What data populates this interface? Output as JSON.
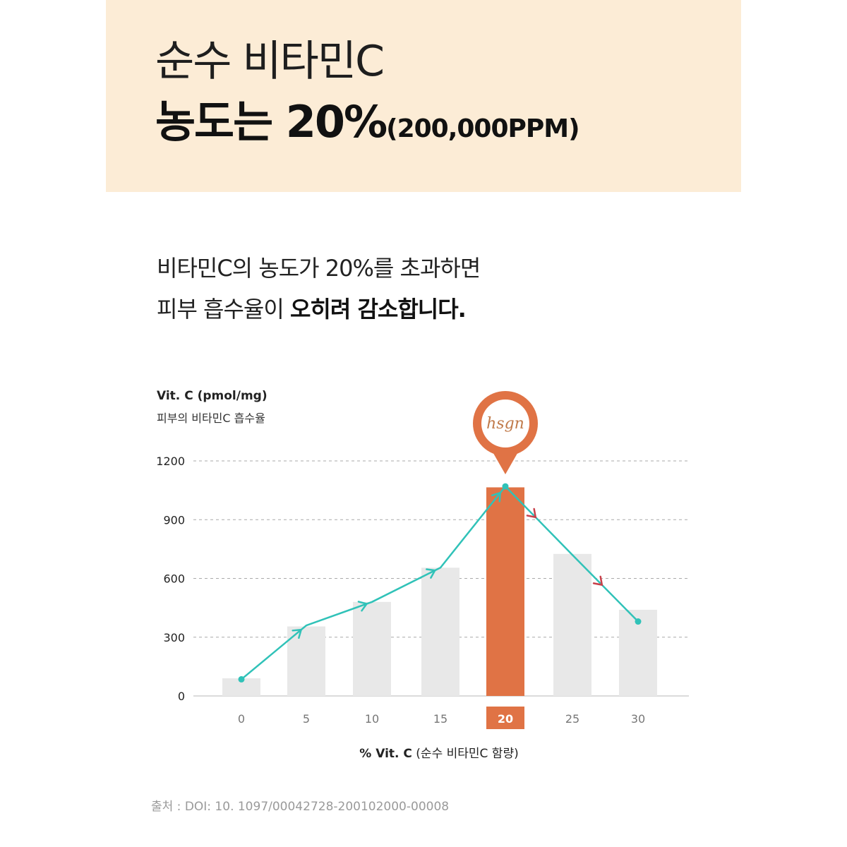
{
  "header": {
    "title_line1": "순수 비타민C",
    "title_line2_bold": "농도는 20%",
    "title_line2_small": "(200,000PPM)"
  },
  "description": {
    "line1": "비타민C의 농도가 20%를 초과하면",
    "line2_regular": "피부 흡수율이 ",
    "line2_bold": "오히려 감소합니다."
  },
  "chart_data": {
    "type": "bar",
    "ylabel": "Vit. C (pmol/mg)",
    "ylabel_sub": "피부의 비타민C 흡수율",
    "xlabel_bold": "% Vit. C",
    "xlabel_rest": " (순수 비타민C 함량)",
    "categories": [
      "0",
      "5",
      "10",
      "15",
      "20",
      "25",
      "30"
    ],
    "values": [
      90,
      355,
      480,
      655,
      1065,
      725,
      440
    ],
    "line_values": [
      85,
      360,
      480,
      655,
      1070,
      720,
      380
    ],
    "highlight_index": 4,
    "yticks": [
      0,
      300,
      600,
      900,
      1200
    ],
    "ylim": [
      0,
      1200
    ],
    "grid": "dashed",
    "marker_logo": "hsgn",
    "colors": {
      "bar": "#e8e8e8",
      "highlight_bar": "#e07345",
      "line": "#30c2b8",
      "rising_arrow": "#30c2b8",
      "falling_arrow": "#c8404a",
      "grid": "#aaaaaa"
    }
  },
  "source": "출처 : DOI: 10. 1097/00042728-200102000-00008"
}
